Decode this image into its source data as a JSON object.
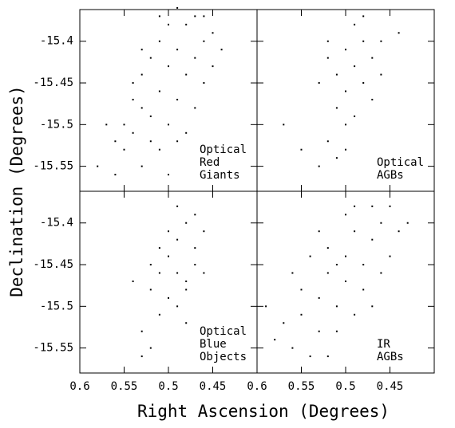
{
  "xlabel": "Right Ascension (Degrees)",
  "ylabel": "Declination (Degrees)",
  "chart_data": [
    {
      "type": "scatter",
      "label": [
        "Optical",
        "Red",
        "Giants"
      ],
      "xlim": [
        0.6,
        0.4
      ],
      "ylim": [
        -15.58,
        -15.362
      ],
      "xticks": [
        0.6,
        0.55,
        0.5,
        0.45
      ],
      "yticks": [
        -15.4,
        -15.45,
        -15.5,
        -15.55
      ],
      "color": "#000000",
      "x": [
        0.58,
        0.56,
        0.55,
        0.54,
        0.53,
        0.52,
        0.55,
        0.54,
        0.52,
        0.51,
        0.53,
        0.5,
        0.49,
        0.52,
        0.5,
        0.48,
        0.51,
        0.49,
        0.47,
        0.5,
        0.48,
        0.46,
        0.47,
        0.45,
        0.44,
        0.49,
        0.53,
        0.51,
        0.5,
        0.48,
        0.47,
        0.46,
        0.45,
        0.56,
        0.57,
        0.54,
        0.53,
        0.51,
        0.46,
        0.49
      ],
      "y": [
        -15.55,
        -15.56,
        -15.53,
        -15.51,
        -15.55,
        -15.52,
        -15.5,
        -15.47,
        -15.49,
        -15.46,
        -15.44,
        -15.5,
        -15.47,
        -15.42,
        -15.43,
        -15.44,
        -15.4,
        -15.41,
        -15.42,
        -15.38,
        -15.38,
        -15.4,
        -15.37,
        -15.39,
        -15.41,
        -15.36,
        -15.48,
        -15.53,
        -15.56,
        -15.51,
        -15.48,
        -15.45,
        -15.43,
        -15.52,
        -15.5,
        -15.45,
        -15.41,
        -15.37,
        -15.37,
        -15.52
      ]
    },
    {
      "type": "scatter",
      "label": [
        "Optical",
        "AGBs"
      ],
      "xlim": [
        0.6,
        0.4
      ],
      "ylim": [
        -15.58,
        -15.362
      ],
      "xticks": [
        0.6,
        0.55,
        0.5,
        0.45
      ],
      "yticks": [
        -15.4,
        -15.45,
        -15.5,
        -15.55
      ],
      "color": "#000000",
      "x": [
        0.53,
        0.55,
        0.52,
        0.51,
        0.5,
        0.51,
        0.49,
        0.5,
        0.48,
        0.51,
        0.49,
        0.47,
        0.5,
        0.48,
        0.46,
        0.49,
        0.48,
        0.52,
        0.53,
        0.47,
        0.46,
        0.44,
        0.57,
        0.52,
        0.5
      ],
      "y": [
        -15.55,
        -15.53,
        -15.52,
        -15.54,
        -15.5,
        -15.48,
        -15.49,
        -15.46,
        -15.45,
        -15.44,
        -15.43,
        -15.42,
        -15.41,
        -15.4,
        -15.4,
        -15.38,
        -15.37,
        -15.42,
        -15.45,
        -15.47,
        -15.44,
        -15.39,
        -15.5,
        -15.4,
        -15.53
      ]
    },
    {
      "type": "scatter",
      "label": [
        "Optical",
        "Blue",
        "Objects"
      ],
      "xlim": [
        0.6,
        0.4
      ],
      "ylim": [
        -15.58,
        -15.362
      ],
      "xticks": [
        0.6,
        0.55,
        0.5,
        0.45
      ],
      "yticks": [
        -15.4,
        -15.45,
        -15.5,
        -15.55
      ],
      "color": "#000000",
      "x": [
        0.52,
        0.53,
        0.51,
        0.5,
        0.52,
        0.49,
        0.51,
        0.48,
        0.5,
        0.47,
        0.49,
        0.48,
        0.49,
        0.47,
        0.46,
        0.48,
        0.5,
        0.47,
        0.54,
        0.51,
        0.46,
        0.49,
        0.52,
        0.48,
        0.53
      ],
      "y": [
        -15.55,
        -15.53,
        -15.51,
        -15.49,
        -15.48,
        -15.5,
        -15.46,
        -15.47,
        -15.44,
        -15.45,
        -15.42,
        -15.4,
        -15.38,
        -15.43,
        -15.46,
        -15.48,
        -15.41,
        -15.39,
        -15.47,
        -15.43,
        -15.41,
        -15.46,
        -15.45,
        -15.52,
        -15.56
      ]
    },
    {
      "type": "scatter",
      "label": [
        "IR",
        "AGBs"
      ],
      "xlim": [
        0.6,
        0.4
      ],
      "ylim": [
        -15.58,
        -15.362
      ],
      "xticks": [
        0.6,
        0.55,
        0.5,
        0.45
      ],
      "yticks": [
        -15.4,
        -15.45,
        -15.5,
        -15.55
      ],
      "color": "#000000",
      "x": [
        0.58,
        0.57,
        0.56,
        0.55,
        0.54,
        0.53,
        0.55,
        0.53,
        0.52,
        0.51,
        0.5,
        0.52,
        0.5,
        0.49,
        0.48,
        0.47,
        0.46,
        0.44,
        0.43,
        0.45,
        0.47,
        0.49,
        0.5,
        0.48,
        0.46,
        0.51,
        0.53,
        0.56,
        0.54,
        0.49,
        0.59,
        0.45,
        0.51,
        0.52,
        0.47
      ],
      "y": [
        -15.54,
        -15.52,
        -15.55,
        -15.51,
        -15.56,
        -15.53,
        -15.48,
        -15.49,
        -15.46,
        -15.5,
        -15.47,
        -15.43,
        -15.44,
        -15.41,
        -15.45,
        -15.42,
        -15.4,
        -15.41,
        -15.4,
        -15.44,
        -15.38,
        -15.38,
        -15.39,
        -15.48,
        -15.46,
        -15.53,
        -15.41,
        -15.46,
        -15.44,
        -15.51,
        -15.5,
        -15.38,
        -15.45,
        -15.56,
        -15.5
      ]
    }
  ]
}
